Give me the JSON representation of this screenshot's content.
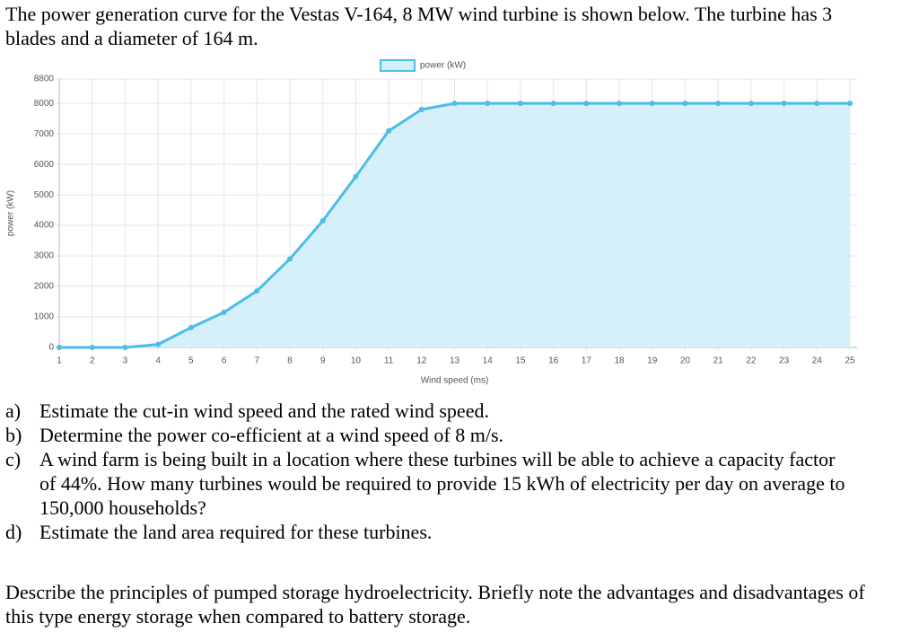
{
  "intro": "The power generation curve for the Vestas V-164, 8 MW wind turbine is shown below. The turbine has 3 blades and a diameter of 164 m.",
  "chart_data": {
    "type": "line",
    "legend": "power (kW)",
    "xlabel": "Wind speed (ms)",
    "ylabel": "power (kW)",
    "x": [
      1,
      2,
      3,
      4,
      5,
      6,
      7,
      8,
      9,
      10,
      11,
      12,
      13,
      14,
      15,
      16,
      17,
      18,
      19,
      20,
      21,
      22,
      23,
      24,
      25
    ],
    "values": [
      0,
      0,
      0,
      100,
      650,
      1150,
      1850,
      2900,
      4150,
      5600,
      7100,
      7800,
      8000,
      8000,
      8000,
      8000,
      8000,
      8000,
      8000,
      8000,
      8000,
      8000,
      8000,
      8000,
      8000
    ],
    "color": "#4bbde8",
    "fill": "#d6f0fb",
    "xlim": [
      1,
      25
    ],
    "xticks": [
      1,
      2,
      3,
      4,
      5,
      6,
      7,
      8,
      9,
      10,
      11,
      12,
      13,
      14,
      15,
      16,
      17,
      18,
      19,
      20,
      21,
      22,
      23,
      24,
      25
    ],
    "ylim": [
      0,
      8800
    ],
    "yticks": [
      0,
      1000,
      2000,
      3000,
      4000,
      5000,
      6000,
      7000,
      8000,
      8800
    ],
    "grid": true
  },
  "questions": [
    {
      "label": "a)",
      "text": "Estimate the cut-in wind speed and the rated wind speed."
    },
    {
      "label": "b)",
      "text": "Determine the power co-efficient at a wind speed of 8 m/s."
    },
    {
      "label": "c)",
      "text": "A wind farm is being built in a location where these turbines will be able to achieve a capacity factor of 44%. How many turbines would be required to provide 15 kWh of electricity per day on average to 150,000 households?"
    },
    {
      "label": "d)",
      "text": "Estimate the land area required for these turbines."
    }
  ],
  "closing": "Describe the principles of pumped storage hydroelectricity. Briefly note the advantages and disadvantages of this type energy storage when compared to battery storage."
}
